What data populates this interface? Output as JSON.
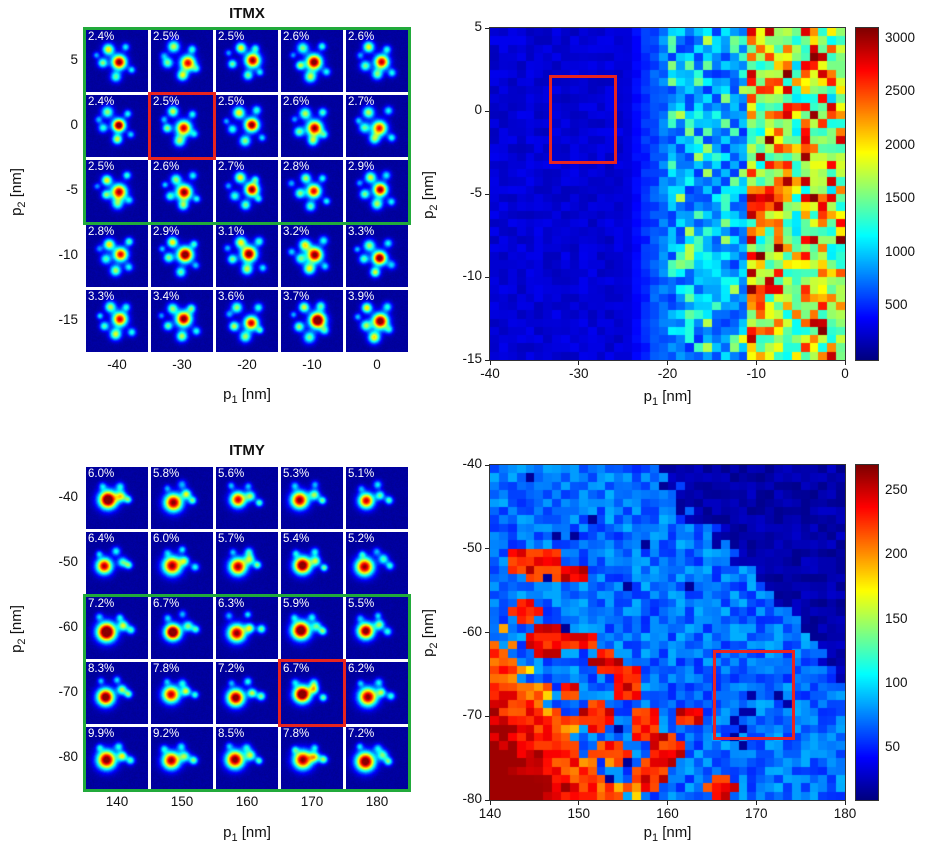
{
  "colors": {
    "background": "#ffffff",
    "selection_green": "#21aa3b",
    "selection_red": "#e8251f",
    "colormap": "jet"
  },
  "chart_data": [
    {
      "type": "heatmap",
      "subtype": "image-montage",
      "id": "itmx-montage",
      "title": "ITMX",
      "xlabel": {
        "base": "p",
        "sub": "1",
        "rest": " [nm]"
      },
      "ylabel": {
        "base": "p",
        "sub": "2",
        "rest": " [nm]"
      },
      "x_ticks": [
        "-40",
        "-30",
        "-20",
        "-10",
        "0"
      ],
      "y_ticks": [
        "5",
        "0",
        "-5",
        "-10",
        "-15"
      ],
      "cell_labels": [
        [
          "2.4%",
          "2.5%",
          "2.5%",
          "2.6%",
          "2.6%"
        ],
        [
          "2.4%",
          "2.5%",
          "2.5%",
          "2.6%",
          "2.7%"
        ],
        [
          "2.5%",
          "2.6%",
          "2.7%",
          "2.8%",
          "2.9%"
        ],
        [
          "2.8%",
          "2.9%",
          "3.1%",
          "3.2%",
          "3.3%"
        ],
        [
          "3.3%",
          "3.4%",
          "3.6%",
          "3.7%",
          "3.9%"
        ]
      ],
      "green_box_rows": [
        0,
        2
      ],
      "red_box_cell": {
        "row": 1,
        "col": 1
      }
    },
    {
      "type": "heatmap",
      "id": "itmx-map",
      "xlabel": {
        "base": "p",
        "sub": "1",
        "rest": " [nm]"
      },
      "ylabel": {
        "base": "p",
        "sub": "2",
        "rest": " [nm]"
      },
      "x_range": [
        -40,
        0
      ],
      "y_range": [
        5,
        -15
      ],
      "x_ticks": [
        "-40",
        "-30",
        "-20",
        "-10",
        "0"
      ],
      "y_ticks": [
        "5",
        "0",
        "-5",
        "-10",
        "-15"
      ],
      "colorbar_ticks": [
        "3000",
        "2500",
        "2000",
        "1500",
        "1000",
        "500"
      ],
      "color_range": [
        0,
        3100
      ],
      "red_box": {
        "x": [
          -33,
          -26
        ],
        "y": [
          2,
          -3
        ]
      },
      "pattern": "uniform dark blue (~200-400) for p1 < -25 nm, transition band -25..-20 nm, noisy blue/cyan speckle (~500-1300) for -20..-11 nm, strongly speckled cyan/green with orange-red vertical streaks (~1200-3100) for p1 > -11 nm"
    },
    {
      "type": "heatmap",
      "subtype": "image-montage",
      "id": "itmy-montage",
      "title": "ITMY",
      "xlabel": {
        "base": "p",
        "sub": "1",
        "rest": " [nm]"
      },
      "ylabel": {
        "base": "p",
        "sub": "2",
        "rest": " [nm]"
      },
      "x_ticks": [
        "140",
        "150",
        "160",
        "170",
        "180"
      ],
      "y_ticks": [
        "-40",
        "-50",
        "-60",
        "-70",
        "-80"
      ],
      "cell_labels": [
        [
          "6.0%",
          "5.8%",
          "5.6%",
          "5.3%",
          "5.1%"
        ],
        [
          "6.4%",
          "6.0%",
          "5.7%",
          "5.4%",
          "5.2%"
        ],
        [
          "7.2%",
          "6.7%",
          "6.3%",
          "5.9%",
          "5.5%"
        ],
        [
          "8.3%",
          "7.8%",
          "7.2%",
          "6.7%",
          "6.2%"
        ],
        [
          "9.9%",
          "9.2%",
          "8.5%",
          "7.8%",
          "7.2%"
        ]
      ],
      "green_box_rows": [
        2,
        4
      ],
      "red_box_cell": {
        "row": 3,
        "col": 3
      }
    },
    {
      "type": "heatmap",
      "id": "itmy-map",
      "xlabel": {
        "base": "p",
        "sub": "1",
        "rest": " [nm]"
      },
      "ylabel": {
        "base": "p",
        "sub": "2",
        "rest": " [nm]"
      },
      "x_range": [
        140,
        180
      ],
      "y_range": [
        -40,
        -80
      ],
      "x_ticks": [
        "140",
        "150",
        "160",
        "170",
        "180"
      ],
      "y_ticks": [
        "-40",
        "-50",
        "-60",
        "-70",
        "-80"
      ],
      "colorbar_ticks": [
        "250",
        "200",
        "150",
        "100",
        "50"
      ],
      "color_range": [
        10,
        270
      ],
      "red_box": {
        "x": [
          165.5,
          174
        ],
        "y": [
          -62.5,
          -72.5
        ]
      },
      "pattern": "orange-red wedge (~180-260) in lower-left corner, medium blue field (~50-90) with scattered red clusters (~215-260) across centre-left, dark navy triangle (~13-30) in upper-right"
    }
  ]
}
